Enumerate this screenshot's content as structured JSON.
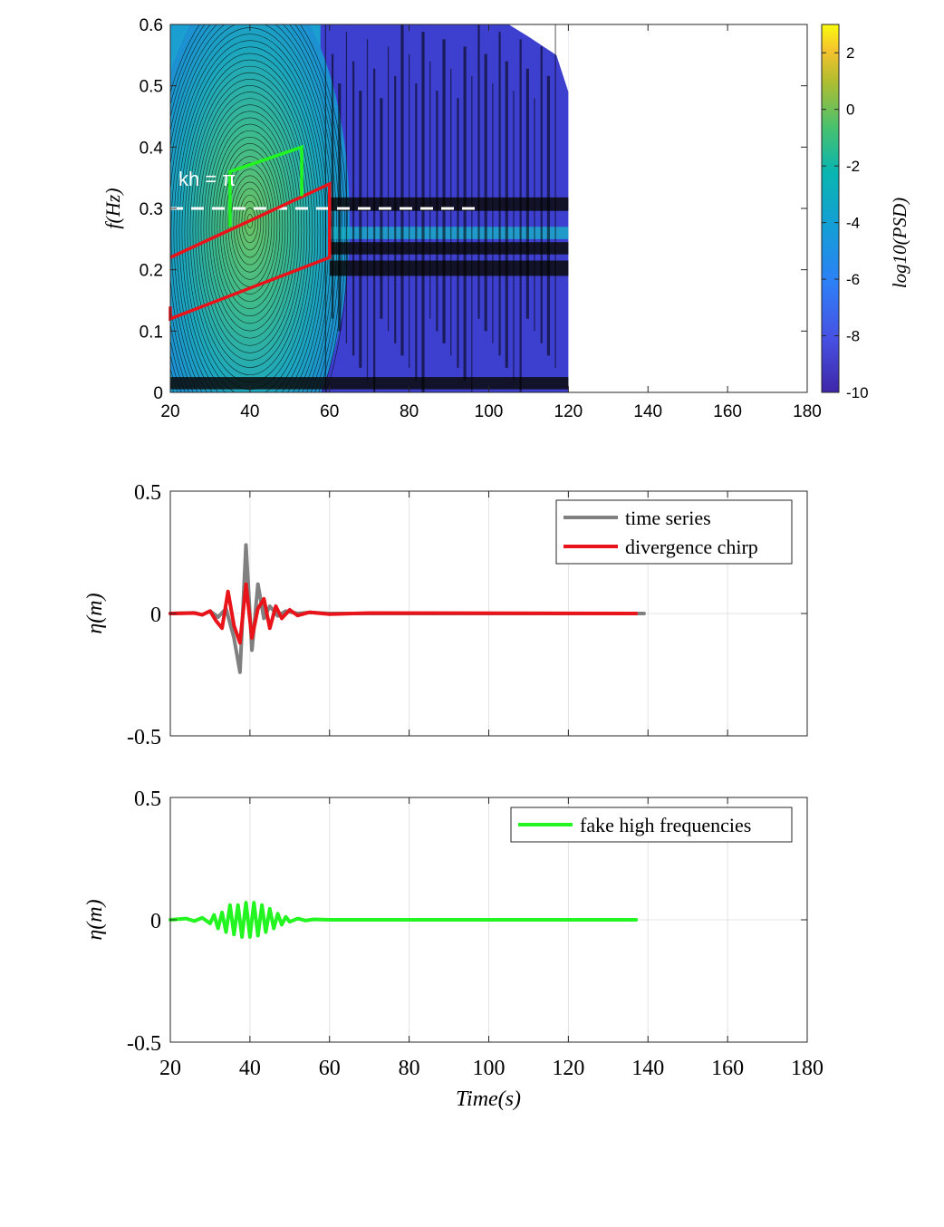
{
  "chart_data": [
    {
      "type": "heatmap",
      "kind": "spectrogram-contour",
      "xlim": [
        20,
        180
      ],
      "ylim": [
        0,
        0.6
      ],
      "xticks": [
        "20",
        "40",
        "60",
        "80",
        "100",
        "120",
        "140",
        "160",
        "180"
      ],
      "yticks": [
        "0",
        "0.1",
        "0.2",
        "0.3",
        "0.4",
        "0.5",
        "0.6"
      ],
      "ylabel": "f(Hz)",
      "colorbar": {
        "label": "log10(PSD)",
        "range": [
          -10,
          3
        ],
        "ticks": [
          "-10",
          "-8",
          "-6",
          "-4",
          "-2",
          "0",
          "2"
        ],
        "colormap": "parula"
      },
      "data_extent_x": [
        20,
        120
      ],
      "peak": {
        "x": 40,
        "y": 0.28,
        "value": -2.5
      },
      "annotation": {
        "text": "kh = π",
        "x": 22,
        "y": 0.345
      },
      "reference_line": {
        "y": 0.3,
        "x": [
          20,
          97
        ],
        "style": "dashed",
        "color": "#ffffff"
      },
      "polygons": [
        {
          "name": "red",
          "color": "#e8141a",
          "points": [
            [
              20,
              0.22
            ],
            [
              60,
              0.34
            ],
            [
              60,
              0.22
            ],
            [
              20,
              0.12
            ],
            [
              20,
              0.14
            ]
          ]
        },
        {
          "name": "green",
          "color": "#22f51f",
          "points": [
            [
              35,
              0.27
            ],
            [
              35,
              0.36
            ],
            [
              53,
              0.4
            ],
            [
              53,
              0.32
            ]
          ]
        }
      ]
    },
    {
      "type": "line",
      "xlim": [
        20,
        180
      ],
      "ylim": [
        -0.5,
        0.5
      ],
      "yticks": [
        "-0.5",
        "0",
        "0.5"
      ],
      "ylabel": "η(m)",
      "grid": true,
      "legend": "top-right",
      "series": [
        {
          "name": "time series",
          "color": "#808080",
          "x": [
            20,
            26,
            28,
            30,
            32,
            34,
            36,
            37.5,
            39,
            40.5,
            42,
            43.5,
            45,
            47,
            49,
            52,
            55,
            60,
            139
          ],
          "y": [
            0,
            0.003,
            -0.005,
            0.01,
            -0.015,
            0.02,
            -0.1,
            -0.24,
            0.28,
            -0.15,
            0.12,
            -0.02,
            0.03,
            -0.01,
            0.01,
            0,
            0.004,
            0,
            0
          ]
        },
        {
          "name": "divergence chirp",
          "color": "#e8141a",
          "x": [
            20,
            26,
            28,
            30,
            31.5,
            33,
            34.5,
            36,
            37.5,
            39,
            40.5,
            42,
            43.5,
            45,
            46.5,
            48,
            50,
            52,
            55,
            60,
            70,
            137
          ],
          "y": [
            0,
            0.002,
            -0.005,
            0.01,
            -0.03,
            -0.06,
            0.09,
            -0.05,
            -0.12,
            0.12,
            -0.1,
            0.02,
            0.06,
            -0.06,
            0.03,
            -0.02,
            0.015,
            -0.008,
            0.005,
            -0.003,
            0.002,
            0
          ]
        }
      ]
    },
    {
      "type": "line",
      "xlim": [
        20,
        180
      ],
      "ylim": [
        -0.5,
        0.5
      ],
      "xticks": [
        "20",
        "40",
        "60",
        "80",
        "100",
        "120",
        "140",
        "160",
        "180"
      ],
      "yticks": [
        "-0.5",
        "0",
        "0.5"
      ],
      "xlabel": "Time(s)",
      "ylabel": "η(m)",
      "grid": true,
      "legend": "top-right",
      "series": [
        {
          "name": "fake high frequencies",
          "color": "#22f51f",
          "x": [
            20,
            24,
            26,
            28,
            30,
            31,
            32,
            33,
            34,
            35,
            36,
            37,
            38,
            39,
            40,
            41,
            42,
            43,
            44,
            45,
            46,
            47,
            48,
            49,
            50,
            52,
            54,
            56,
            60,
            137
          ],
          "y": [
            0,
            0.005,
            -0.005,
            0.008,
            -0.015,
            0.02,
            -0.035,
            0.03,
            -0.05,
            0.06,
            -0.06,
            0.06,
            -0.07,
            0.07,
            -0.07,
            0.07,
            -0.065,
            0.06,
            -0.05,
            0.045,
            -0.035,
            0.025,
            -0.02,
            0.012,
            -0.008,
            0.005,
            -0.003,
            0.002,
            0,
            0
          ]
        }
      ]
    }
  ]
}
